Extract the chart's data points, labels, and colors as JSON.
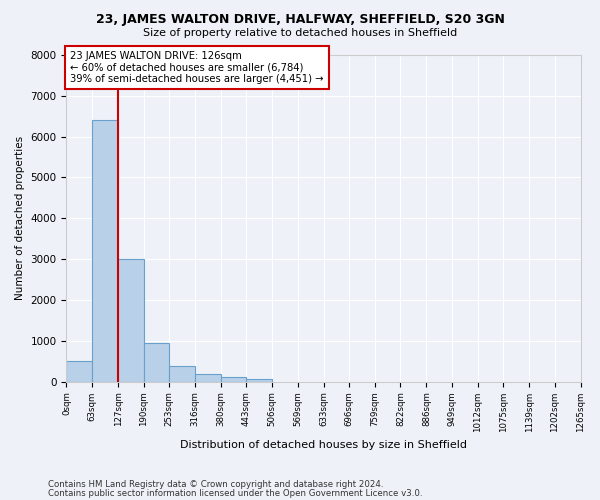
{
  "title1": "23, JAMES WALTON DRIVE, HALFWAY, SHEFFIELD, S20 3GN",
  "title2": "Size of property relative to detached houses in Sheffield",
  "xlabel": "Distribution of detached houses by size in Sheffield",
  "ylabel": "Number of detached properties",
  "bin_edges": [
    0,
    63,
    127,
    190,
    253,
    316,
    380,
    443,
    506,
    569,
    633,
    696,
    759,
    822,
    886,
    949,
    1012,
    1075,
    1139,
    1202,
    1265
  ],
  "bar_heights": [
    500,
    6400,
    3000,
    950,
    380,
    175,
    100,
    75,
    0,
    0,
    0,
    0,
    0,
    0,
    0,
    0,
    0,
    0,
    0,
    0
  ],
  "bar_color": "#b8d0e8",
  "bar_edge_color": "#6aa0cc",
  "red_line_x": 127,
  "annotation_title": "23 JAMES WALTON DRIVE: 126sqm",
  "annotation_line1": "← 60% of detached houses are smaller (6,784)",
  "annotation_line2": "39% of semi-detached houses are larger (4,451) →",
  "annotation_box_color": "#ffffff",
  "annotation_box_edge": "#cc0000",
  "red_line_color": "#cc0000",
  "ylim": [
    0,
    8000
  ],
  "yticks": [
    0,
    1000,
    2000,
    3000,
    4000,
    5000,
    6000,
    7000,
    8000
  ],
  "footer1": "Contains HM Land Registry data © Crown copyright and database right 2024.",
  "footer2": "Contains public sector information licensed under the Open Government Licence v3.0.",
  "bg_color": "#eef2f8"
}
